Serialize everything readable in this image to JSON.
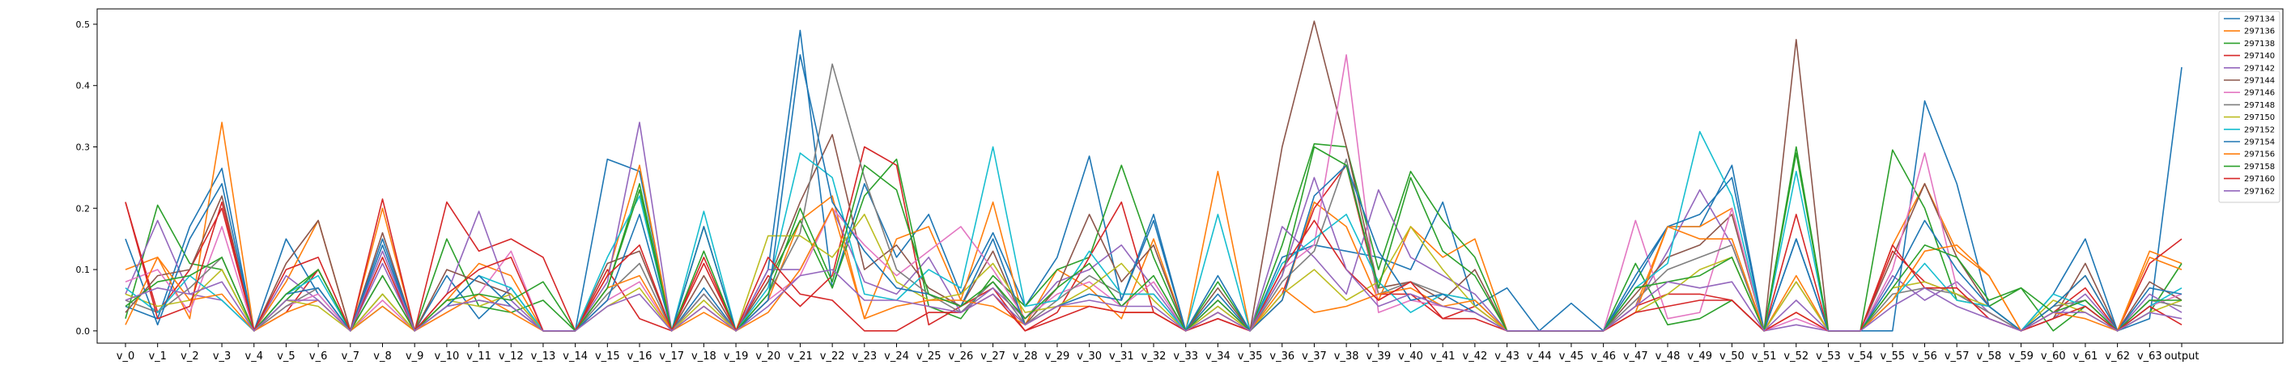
{
  "chart_data": {
    "type": "line",
    "title": "",
    "xlabel": "",
    "ylabel": "",
    "ylim": [
      -0.02,
      0.525
    ],
    "grid": false,
    "legend_position": "top-right",
    "yticks": [
      0.0,
      0.1,
      0.2,
      0.3,
      0.4,
      0.5
    ],
    "ytick_labels": [
      "0.0",
      "0.1",
      "0.2",
      "0.3",
      "0.4",
      "0.5"
    ],
    "categories": [
      "v_0",
      "v_1",
      "v_2",
      "v_3",
      "v_4",
      "v_5",
      "v_6",
      "v_7",
      "v_8",
      "v_9",
      "v_10",
      "v_11",
      "v_12",
      "v_13",
      "v_14",
      "v_15",
      "v_16",
      "v_17",
      "v_18",
      "v_19",
      "v_20",
      "v_21",
      "v_22",
      "v_23",
      "v_24",
      "v_25",
      "v_26",
      "v_27",
      "v_28",
      "v_29",
      "v_30",
      "v_31",
      "v_32",
      "v_33",
      "v_34",
      "v_35",
      "v_36",
      "v_37",
      "v_38",
      "v_39",
      "v_40",
      "v_41",
      "v_42",
      "v_43",
      "v_44",
      "v_45",
      "v_46",
      "v_47",
      "v_48",
      "v_49",
      "v_50",
      "v_51",
      "v_52",
      "v_53",
      "v_54",
      "v_55",
      "v_56",
      "v_57",
      "v_58",
      "v_59",
      "v_60",
      "v_61",
      "v_62",
      "v_63",
      "output"
    ],
    "series": [
      {
        "name": "297134",
        "color": "#1f77b4",
        "values": [
          0.04,
          0.02,
          0.17,
          0.265,
          0.0,
          0.15,
          0.06,
          0.0,
          0.14,
          0.0,
          0.09,
          0.02,
          0.07,
          0.0,
          0.0,
          0.28,
          0.26,
          0.0,
          0.07,
          0.0,
          0.1,
          0.49,
          0.07,
          0.24,
          0.12,
          0.19,
          0.06,
          0.16,
          0.04,
          0.12,
          0.285,
          0.05,
          0.19,
          0.0,
          0.06,
          0.0,
          0.12,
          0.14,
          0.13,
          0.12,
          0.1,
          0.21,
          0.04,
          0.07,
          0.0,
          0.045,
          0.0,
          0.08,
          0.17,
          0.17,
          0.27,
          0.0,
          0.15,
          0.0,
          0.0,
          0.0,
          0.375,
          0.24,
          0.04,
          0.0,
          0.06,
          0.15,
          0.0,
          0.02,
          0.43
        ]
      },
      {
        "name": "297136",
        "color": "#ff7f0e",
        "values": [
          0.1,
          0.12,
          0.02,
          0.34,
          0.0,
          0.08,
          0.18,
          0.0,
          0.2,
          0.0,
          0.05,
          0.11,
          0.09,
          0.0,
          0.0,
          0.09,
          0.27,
          0.0,
          0.04,
          0.0,
          0.05,
          0.18,
          0.22,
          0.02,
          0.15,
          0.17,
          0.05,
          0.21,
          0.01,
          0.1,
          0.07,
          0.02,
          0.15,
          0.0,
          0.26,
          0.0,
          0.05,
          0.21,
          0.17,
          0.05,
          0.17,
          0.12,
          0.15,
          0.0,
          0.0,
          0.0,
          0.0,
          0.04,
          0.17,
          0.17,
          0.2,
          0.0,
          0.09,
          0.0,
          0.0,
          0.14,
          0.24,
          0.13,
          0.09,
          0.0,
          0.04,
          0.09,
          0.0,
          0.13,
          0.11
        ]
      },
      {
        "name": "297138",
        "color": "#2ca02c",
        "values": [
          0.02,
          0.205,
          0.11,
          0.1,
          0.0,
          0.05,
          0.1,
          0.0,
          0.06,
          0.0,
          0.15,
          0.04,
          0.03,
          0.05,
          0.0,
          0.07,
          0.24,
          0.0,
          0.17,
          0.0,
          0.08,
          0.18,
          0.07,
          0.22,
          0.28,
          0.04,
          0.02,
          0.09,
          0.04,
          0.1,
          0.12,
          0.27,
          0.12,
          0.0,
          0.08,
          0.0,
          0.14,
          0.305,
          0.3,
          0.1,
          0.26,
          0.18,
          0.12,
          0.0,
          0.0,
          0.0,
          0.0,
          0.11,
          0.01,
          0.02,
          0.05,
          0.0,
          0.3,
          0.0,
          0.0,
          0.295,
          0.2,
          0.05,
          0.04,
          0.07,
          0.0,
          0.04,
          0.0,
          0.03,
          0.11
        ]
      },
      {
        "name": "297140",
        "color": "#d62728",
        "values": [
          0.21,
          0.03,
          0.1,
          0.2,
          0.0,
          0.03,
          0.1,
          0.0,
          0.215,
          0.0,
          0.21,
          0.13,
          0.15,
          0.12,
          0.0,
          0.1,
          0.02,
          0.0,
          0.12,
          0.0,
          0.09,
          0.04,
          0.09,
          0.3,
          0.27,
          0.01,
          0.04,
          0.07,
          0.0,
          0.03,
          0.12,
          0.21,
          0.03,
          0.0,
          0.02,
          0.0,
          0.06,
          0.2,
          0.27,
          0.06,
          0.06,
          0.02,
          0.04,
          0.0,
          0.0,
          0.0,
          0.0,
          0.04,
          0.06,
          0.06,
          0.05,
          0.0,
          0.19,
          0.0,
          0.0,
          0.13,
          0.08,
          0.06,
          0.03,
          0.0,
          0.03,
          0.07,
          0.0,
          0.11,
          0.15
        ]
      },
      {
        "name": "297142",
        "color": "#9467bd",
        "values": [
          0.06,
          0.18,
          0.06,
          0.05,
          0.0,
          0.09,
          0.05,
          0.0,
          0.11,
          0.0,
          0.06,
          0.195,
          0.05,
          0.0,
          0.0,
          0.08,
          0.34,
          0.0,
          0.06,
          0.0,
          0.1,
          0.1,
          0.2,
          0.08,
          0.06,
          0.12,
          0.03,
          0.07,
          0.02,
          0.08,
          0.1,
          0.14,
          0.07,
          0.0,
          0.04,
          0.0,
          0.17,
          0.12,
          0.06,
          0.23,
          0.12,
          0.09,
          0.06,
          0.0,
          0.0,
          0.0,
          0.0,
          0.04,
          0.13,
          0.23,
          0.14,
          0.0,
          0.01,
          0.0,
          0.0,
          0.09,
          0.05,
          0.08,
          0.03,
          0.0,
          0.02,
          0.06,
          0.0,
          0.06,
          0.03
        ]
      },
      {
        "name": "297144",
        "color": "#8c564b",
        "values": [
          0.03,
          0.09,
          0.1,
          0.22,
          0.0,
          0.11,
          0.18,
          0.0,
          0.16,
          0.0,
          0.1,
          0.08,
          0.06,
          0.0,
          0.0,
          0.11,
          0.13,
          0.0,
          0.09,
          0.0,
          0.08,
          0.21,
          0.32,
          0.1,
          0.14,
          0.07,
          0.04,
          0.13,
          0.01,
          0.07,
          0.19,
          0.08,
          0.14,
          0.0,
          0.07,
          0.0,
          0.3,
          0.505,
          0.3,
          0.07,
          0.08,
          0.05,
          0.1,
          0.0,
          0.0,
          0.0,
          0.0,
          0.06,
          0.12,
          0.14,
          0.19,
          0.0,
          0.475,
          0.0,
          0.0,
          0.12,
          0.24,
          0.12,
          0.04,
          0.0,
          0.02,
          0.11,
          0.0,
          0.08,
          0.05
        ]
      },
      {
        "name": "297146",
        "color": "#e377c2",
        "values": [
          0.08,
          0.1,
          0.03,
          0.17,
          0.0,
          0.04,
          0.06,
          0.0,
          0.05,
          0.0,
          0.03,
          0.06,
          0.13,
          0.0,
          0.0,
          0.05,
          0.08,
          0.0,
          0.06,
          0.0,
          0.05,
          0.09,
          0.2,
          0.14,
          0.09,
          0.13,
          0.17,
          0.1,
          0.02,
          0.06,
          0.08,
          0.04,
          0.08,
          0.0,
          0.05,
          0.0,
          0.1,
          0.14,
          0.45,
          0.03,
          0.05,
          0.04,
          0.03,
          0.0,
          0.0,
          0.0,
          0.0,
          0.18,
          0.02,
          0.03,
          0.2,
          0.0,
          0.02,
          0.0,
          0.0,
          0.1,
          0.29,
          0.07,
          0.02,
          0.0,
          0.03,
          0.05,
          0.0,
          0.04,
          0.06
        ]
      },
      {
        "name": "297148",
        "color": "#7f7f7f",
        "values": [
          0.05,
          0.03,
          0.07,
          0.12,
          0.0,
          0.04,
          0.07,
          0.0,
          0.09,
          0.0,
          0.04,
          0.05,
          0.04,
          0.0,
          0.0,
          0.06,
          0.11,
          0.0,
          0.06,
          0.0,
          0.06,
          0.16,
          0.435,
          0.25,
          0.1,
          0.06,
          0.03,
          0.08,
          0.01,
          0.05,
          0.09,
          0.06,
          0.06,
          0.0,
          0.03,
          0.0,
          0.08,
          0.13,
          0.28,
          0.06,
          0.08,
          0.06,
          0.05,
          0.0,
          0.0,
          0.0,
          0.0,
          0.05,
          0.1,
          0.12,
          0.14,
          0.0,
          0.08,
          0.0,
          0.0,
          0.06,
          0.07,
          0.06,
          0.03,
          0.0,
          0.04,
          0.05,
          0.0,
          0.05,
          0.04
        ]
      },
      {
        "name": "297150",
        "color": "#bcbd22",
        "values": [
          0.06,
          0.04,
          0.05,
          0.1,
          0.0,
          0.05,
          0.04,
          0.0,
          0.06,
          0.0,
          0.05,
          0.04,
          0.06,
          0.0,
          0.0,
          0.04,
          0.07,
          0.0,
          0.05,
          0.0,
          0.155,
          0.155,
          0.12,
          0.19,
          0.08,
          0.05,
          0.06,
          0.11,
          0.03,
          0.04,
          0.07,
          0.11,
          0.05,
          0.0,
          0.04,
          0.0,
          0.06,
          0.1,
          0.05,
          0.08,
          0.17,
          0.1,
          0.04,
          0.0,
          0.0,
          0.0,
          0.0,
          0.03,
          0.06,
          0.1,
          0.12,
          0.0,
          0.08,
          0.0,
          0.0,
          0.07,
          0.08,
          0.06,
          0.04,
          0.0,
          0.05,
          0.03,
          0.0,
          0.03,
          0.05
        ]
      },
      {
        "name": "297152",
        "color": "#17becf",
        "values": [
          0.07,
          0.03,
          0.09,
          0.05,
          0.0,
          0.06,
          0.09,
          0.0,
          0.04,
          0.0,
          0.04,
          0.09,
          0.07,
          0.0,
          0.0,
          0.12,
          0.22,
          0.0,
          0.195,
          0.0,
          0.07,
          0.29,
          0.25,
          0.06,
          0.05,
          0.1,
          0.07,
          0.3,
          0.04,
          0.05,
          0.13,
          0.06,
          0.06,
          0.0,
          0.19,
          0.0,
          0.11,
          0.15,
          0.19,
          0.08,
          0.03,
          0.06,
          0.05,
          0.0,
          0.0,
          0.0,
          0.0,
          0.07,
          0.11,
          0.325,
          0.22,
          0.0,
          0.26,
          0.0,
          0.0,
          0.05,
          0.11,
          0.05,
          0.04,
          0.0,
          0.06,
          0.04,
          0.0,
          0.04,
          0.07
        ]
      },
      {
        "name": "297154",
        "color": "#1f77b4",
        "values": [
          0.15,
          0.01,
          0.15,
          0.24,
          0.0,
          0.06,
          0.07,
          0.0,
          0.15,
          0.0,
          0.04,
          0.09,
          0.04,
          0.0,
          0.0,
          0.05,
          0.19,
          0.0,
          0.17,
          0.0,
          0.05,
          0.45,
          0.21,
          0.13,
          0.07,
          0.06,
          0.04,
          0.15,
          0.01,
          0.04,
          0.06,
          0.05,
          0.18,
          0.0,
          0.09,
          0.0,
          0.05,
          0.22,
          0.27,
          0.13,
          0.05,
          0.06,
          0.03,
          0.0,
          0.0,
          0.0,
          0.0,
          0.09,
          0.17,
          0.19,
          0.25,
          0.0,
          0.15,
          0.0,
          0.0,
          0.08,
          0.18,
          0.1,
          0.04,
          0.0,
          0.04,
          0.09,
          0.0,
          0.07,
          0.06
        ]
      },
      {
        "name": "297156",
        "color": "#ff7f0e",
        "values": [
          0.01,
          0.12,
          0.05,
          0.06,
          0.0,
          0.03,
          0.05,
          0.0,
          0.04,
          0.0,
          0.03,
          0.06,
          0.03,
          0.0,
          0.0,
          0.07,
          0.09,
          0.0,
          0.03,
          0.0,
          0.03,
          0.1,
          0.2,
          0.02,
          0.04,
          0.05,
          0.05,
          0.04,
          0.01,
          0.04,
          0.04,
          0.03,
          0.03,
          0.0,
          0.03,
          0.0,
          0.07,
          0.03,
          0.04,
          0.06,
          0.07,
          0.04,
          0.05,
          0.0,
          0.0,
          0.0,
          0.0,
          0.03,
          0.17,
          0.15,
          0.15,
          0.0,
          0.03,
          0.0,
          0.0,
          0.05,
          0.13,
          0.14,
          0.09,
          0.0,
          0.03,
          0.02,
          0.0,
          0.12,
          0.1
        ]
      },
      {
        "name": "297158",
        "color": "#2ca02c",
        "values": [
          0.04,
          0.08,
          0.09,
          0.12,
          0.0,
          0.06,
          0.1,
          0.0,
          0.09,
          0.0,
          0.05,
          0.06,
          0.05,
          0.08,
          0.0,
          0.07,
          0.23,
          0.0,
          0.13,
          0.0,
          0.06,
          0.2,
          0.08,
          0.27,
          0.23,
          0.06,
          0.04,
          0.08,
          0.02,
          0.07,
          0.11,
          0.04,
          0.09,
          0.0,
          0.05,
          0.0,
          0.09,
          0.3,
          0.27,
          0.07,
          0.25,
          0.13,
          0.09,
          0.0,
          0.0,
          0.0,
          0.0,
          0.07,
          0.08,
          0.09,
          0.12,
          0.0,
          0.29,
          0.0,
          0.0,
          0.07,
          0.14,
          0.12,
          0.05,
          0.07,
          0.03,
          0.05,
          0.0,
          0.05,
          0.05
        ]
      },
      {
        "name": "297160",
        "color": "#d62728",
        "values": [
          0.21,
          0.02,
          0.04,
          0.21,
          0.0,
          0.1,
          0.12,
          0.0,
          0.12,
          0.0,
          0.06,
          0.1,
          0.12,
          0.0,
          0.0,
          0.09,
          0.14,
          0.0,
          0.11,
          0.0,
          0.12,
          0.06,
          0.05,
          0.0,
          0.0,
          0.03,
          0.03,
          0.06,
          0.0,
          0.02,
          0.04,
          0.03,
          0.03,
          0.0,
          0.02,
          0.0,
          0.1,
          0.18,
          0.1,
          0.05,
          0.08,
          0.02,
          0.02,
          0.0,
          0.0,
          0.0,
          0.0,
          0.03,
          0.04,
          0.05,
          0.05,
          0.0,
          0.03,
          0.0,
          0.0,
          0.14,
          0.07,
          0.07,
          0.02,
          0.0,
          0.02,
          0.04,
          0.0,
          0.04,
          0.01
        ]
      },
      {
        "name": "297162",
        "color": "#9467bd",
        "values": [
          0.05,
          0.07,
          0.06,
          0.08,
          0.0,
          0.05,
          0.05,
          0.0,
          0.13,
          0.0,
          0.04,
          0.05,
          0.04,
          0.0,
          0.0,
          0.04,
          0.06,
          0.0,
          0.04,
          0.0,
          0.04,
          0.09,
          0.1,
          0.05,
          0.05,
          0.04,
          0.03,
          0.06,
          0.01,
          0.04,
          0.05,
          0.04,
          0.04,
          0.0,
          0.03,
          0.0,
          0.09,
          0.25,
          0.1,
          0.04,
          0.06,
          0.04,
          0.03,
          0.0,
          0.0,
          0.0,
          0.0,
          0.04,
          0.08,
          0.07,
          0.08,
          0.0,
          0.05,
          0.0,
          0.0,
          0.04,
          0.07,
          0.04,
          0.02,
          0.0,
          0.03,
          0.03,
          0.0,
          0.03,
          0.02
        ]
      }
    ]
  }
}
